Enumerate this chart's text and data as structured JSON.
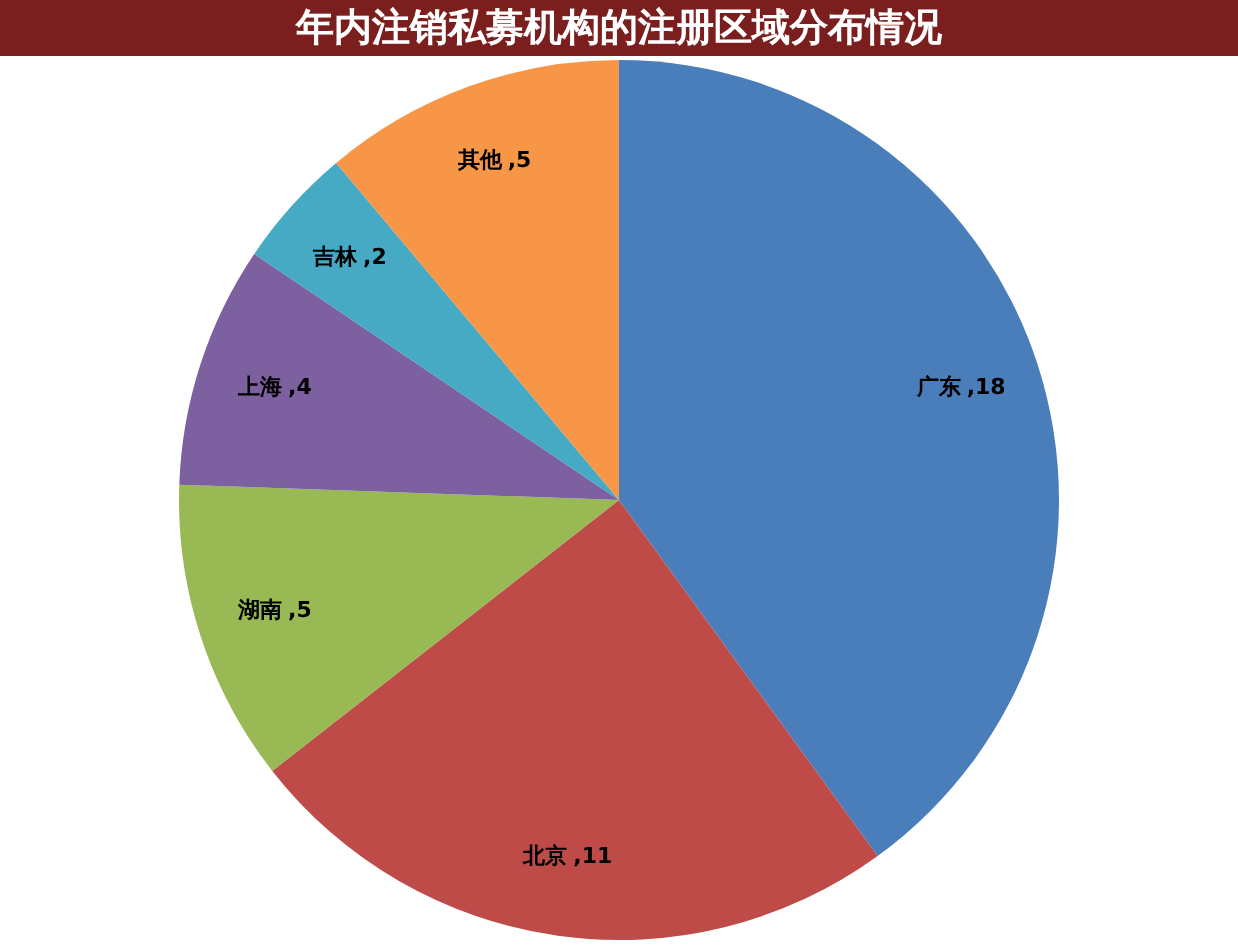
{
  "chart_data": {
    "type": "pie",
    "title": "年内注销私募机构的注册区域分布情况",
    "categories": [
      "广东",
      "北京",
      "湖南",
      "上海",
      "吉林",
      "其他"
    ],
    "values": [
      18,
      11,
      5,
      4,
      2,
      5
    ],
    "value_labels": [
      ",18",
      ",11",
      ",5",
      ",4",
      ",2",
      ",5"
    ],
    "colors": [
      "#4a7ebb",
      "#be4b48",
      "#98b954",
      "#7d60a0",
      "#46aac5",
      "#f79646"
    ],
    "legend": false
  }
}
